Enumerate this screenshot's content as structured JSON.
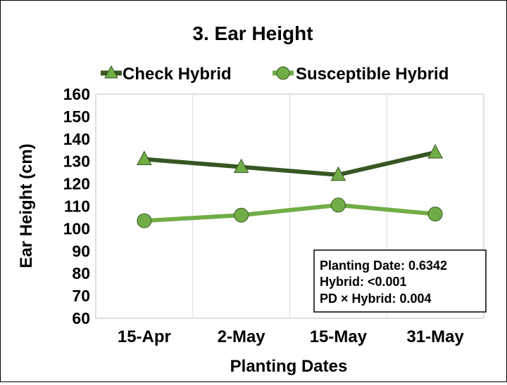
{
  "chart_data": {
    "type": "line",
    "title": "3. Ear Height",
    "xlabel": "Planting Dates",
    "ylabel": "Ear Height (cm)",
    "categories": [
      "15-Apr",
      "2-May",
      "15-May",
      "31-May"
    ],
    "ylim": [
      60,
      160
    ],
    "yticks": [
      60,
      70,
      80,
      90,
      100,
      110,
      120,
      130,
      140,
      150,
      160
    ],
    "grid": "vertical",
    "legend_position": "top",
    "series": [
      {
        "name": "Check Hybrid",
        "values": [
          131,
          127.5,
          124,
          134
        ],
        "color": "#375623",
        "marker": "triangle",
        "marker_color": "#70AD47"
      },
      {
        "name": "Susceptible Hybrid",
        "values": [
          103.5,
          106,
          110.5,
          106.5
        ],
        "color": "#70AD47",
        "marker": "circle",
        "marker_color": "#70AD47"
      }
    ],
    "annotation": {
      "lines": [
        "Planting Date: 0.6342",
        "Hybrid: <0.001",
        "PD × Hybrid: 0.004"
      ]
    }
  }
}
